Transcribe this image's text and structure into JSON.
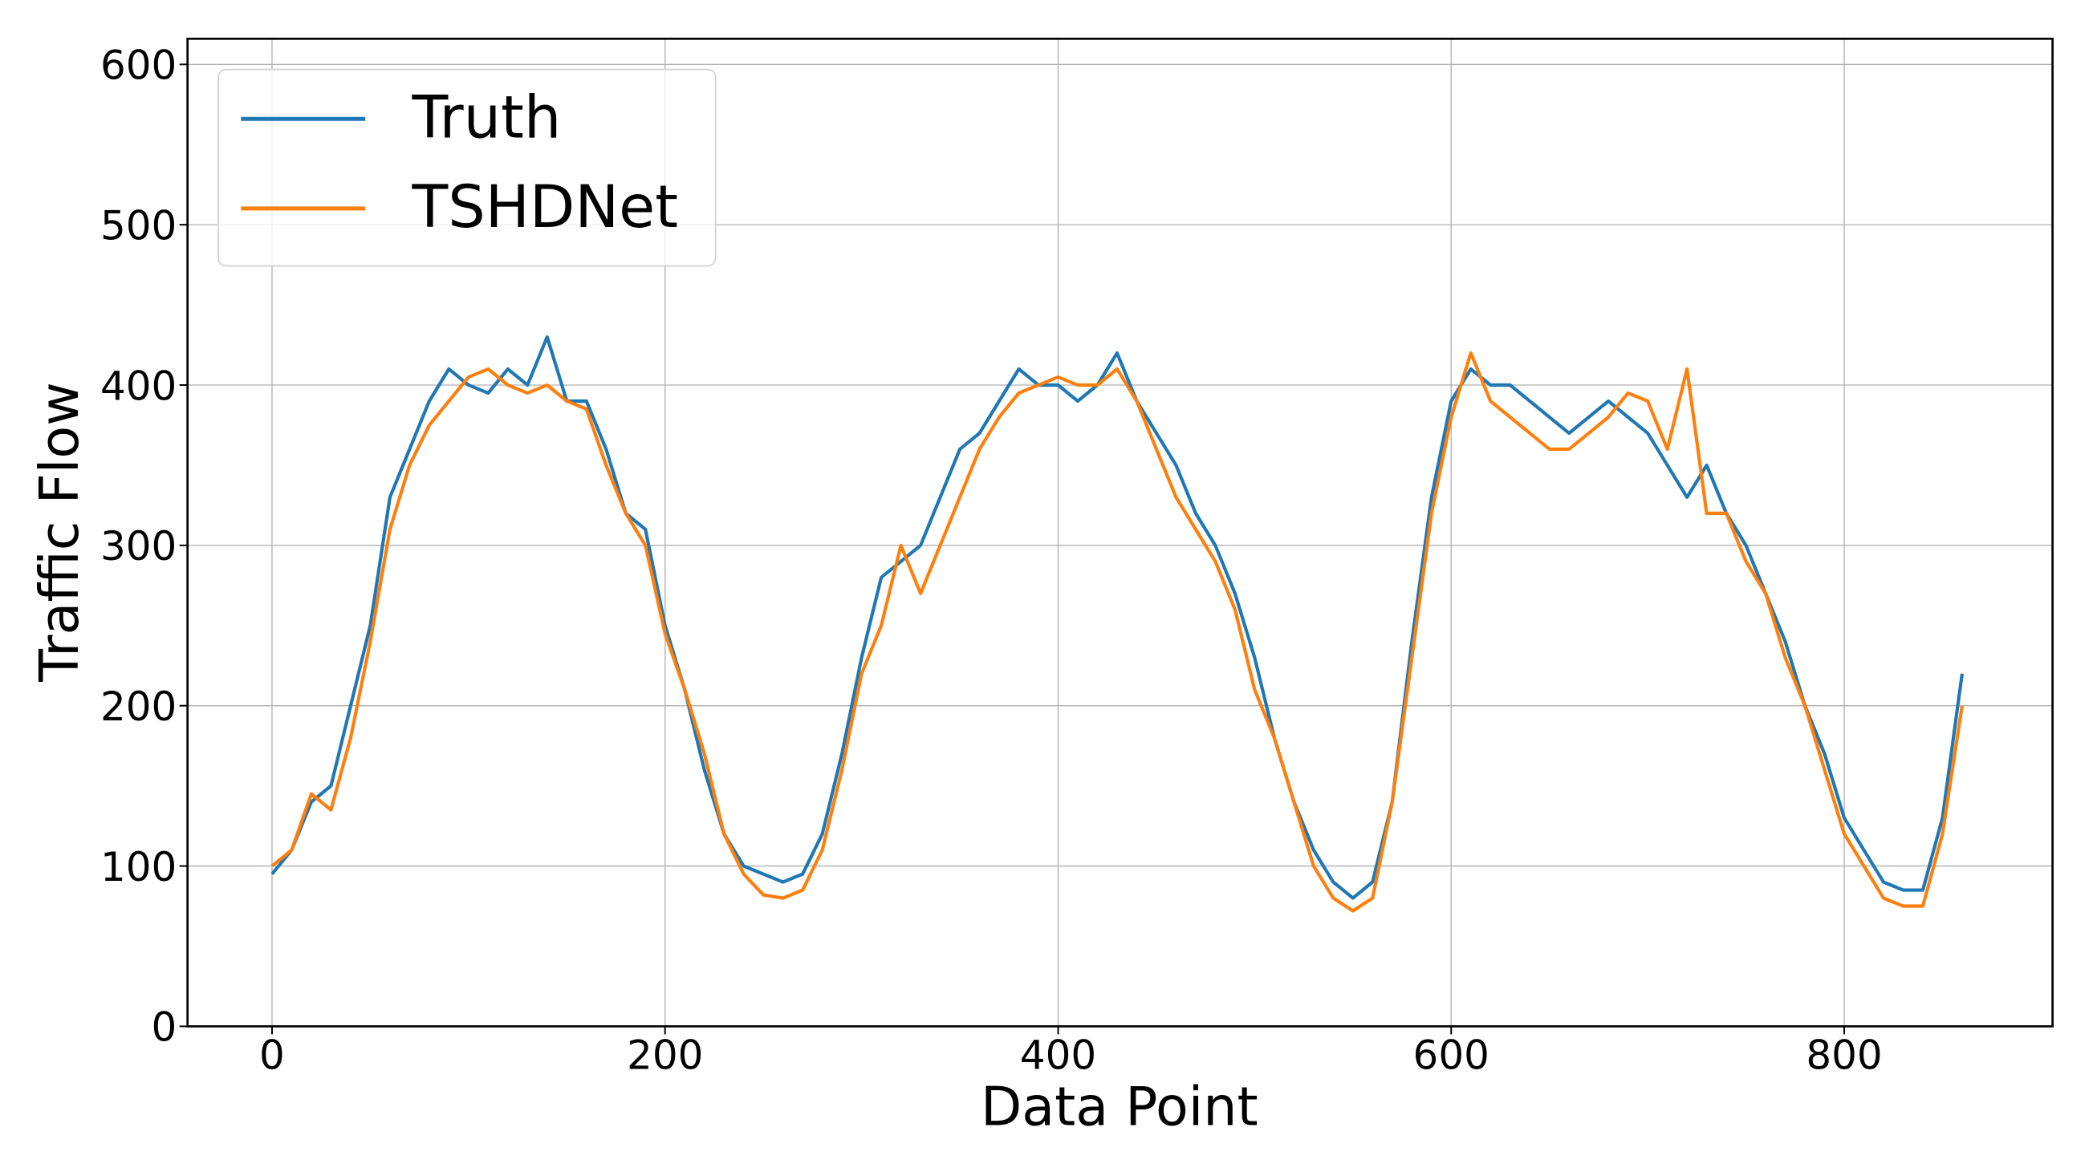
{
  "chart_data": {
    "type": "line",
    "xlabel": "Data Point",
    "ylabel": "Traffic Flow",
    "x": [
      0,
      10,
      20,
      30,
      40,
      50,
      60,
      70,
      80,
      90,
      100,
      110,
      120,
      130,
      140,
      150,
      160,
      170,
      180,
      190,
      200,
      210,
      220,
      230,
      240,
      250,
      260,
      270,
      280,
      290,
      300,
      310,
      320,
      330,
      340,
      350,
      360,
      370,
      380,
      390,
      400,
      410,
      420,
      430,
      440,
      450,
      460,
      470,
      480,
      490,
      500,
      510,
      520,
      530,
      540,
      550,
      560,
      570,
      580,
      590,
      600,
      610,
      620,
      630,
      640,
      650,
      660,
      670,
      680,
      690,
      700,
      710,
      720,
      730,
      740,
      750,
      760,
      770,
      780,
      790,
      800,
      810,
      820,
      830,
      840,
      850,
      860
    ],
    "series": [
      {
        "name": "Truth",
        "color": "#1f77b4",
        "values": [
          95,
          110,
          140,
          150,
          200,
          250,
          330,
          360,
          390,
          410,
          400,
          395,
          410,
          400,
          430,
          390,
          390,
          360,
          320,
          310,
          250,
          210,
          160,
          120,
          100,
          95,
          90,
          95,
          120,
          170,
          230,
          280,
          290,
          300,
          330,
          360,
          370,
          390,
          410,
          400,
          400,
          390,
          400,
          420,
          390,
          370,
          350,
          320,
          300,
          270,
          230,
          180,
          140,
          110,
          90,
          80,
          90,
          140,
          240,
          330,
          390,
          410,
          400,
          400,
          390,
          380,
          370,
          380,
          390,
          380,
          370,
          350,
          330,
          350,
          320,
          300,
          270,
          240,
          200,
          170,
          130,
          110,
          90,
          85,
          85,
          130,
          220
        ]
      },
      {
        "name": "TSHDNet",
        "color": "#ff7f0e",
        "values": [
          100,
          110,
          145,
          135,
          180,
          240,
          310,
          350,
          375,
          390,
          405,
          410,
          400,
          395,
          400,
          390,
          385,
          350,
          320,
          300,
          245,
          210,
          170,
          120,
          95,
          82,
          80,
          85,
          110,
          160,
          220,
          250,
          300,
          270,
          300,
          330,
          360,
          380,
          395,
          400,
          405,
          400,
          400,
          410,
          390,
          360,
          330,
          310,
          290,
          260,
          210,
          180,
          140,
          100,
          80,
          72,
          80,
          140,
          230,
          320,
          380,
          420,
          390,
          380,
          370,
          360,
          360,
          370,
          380,
          395,
          390,
          360,
          410,
          320,
          320,
          290,
          270,
          230,
          200,
          160,
          120,
          100,
          80,
          75,
          75,
          120,
          200
        ]
      }
    ],
    "xlim": [
      -43,
      906
    ],
    "ylim": [
      0,
      616
    ],
    "xticks": [
      0,
      200,
      400,
      600,
      800
    ],
    "yticks": [
      0,
      100,
      200,
      300,
      400,
      500,
      600
    ],
    "grid": true,
    "legend": "upper left"
  }
}
